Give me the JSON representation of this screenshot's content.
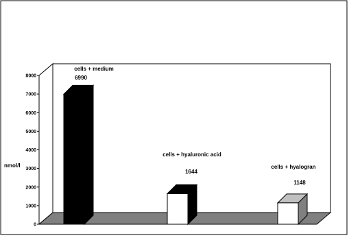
{
  "chart_data": {
    "type": "bar",
    "ylabel": "nmol/l",
    "ylim": [
      0,
      8000
    ],
    "yticks": [
      0,
      1000,
      2000,
      3000,
      4000,
      5000,
      6000,
      7000,
      8000
    ],
    "categories": [
      "cells + medium",
      "cells + hyaluronic acid",
      "cells + hyalogran"
    ],
    "values": [
      6990,
      1644,
      1148
    ],
    "data_labels": [
      "6990",
      "1644",
      "1148"
    ],
    "style": "3d",
    "grid": false,
    "legend": "none"
  },
  "colors": {
    "bar_fills": [
      "#000000",
      "#ffffff",
      "#ffffff"
    ],
    "floor": "#808080",
    "bar_top_3": "#c0c0c0",
    "bar_side_3": "#808080"
  }
}
